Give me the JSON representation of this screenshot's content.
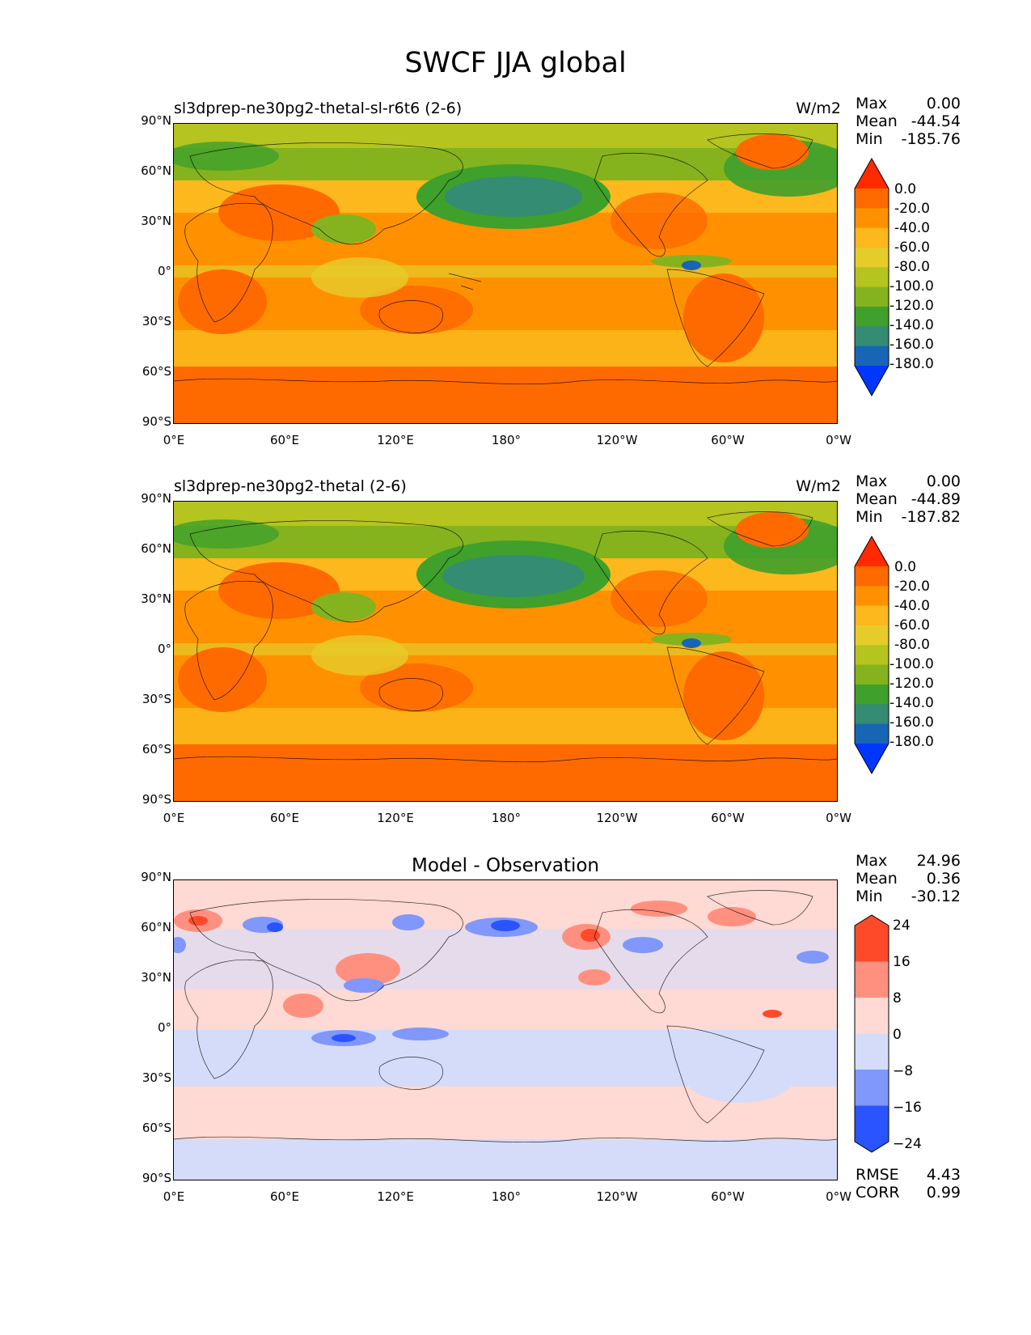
{
  "figure_title": "SWCF JJA global",
  "panels": [
    {
      "id": "test",
      "title": "sl3dprep-ne30pg2-thetal-sl-r6t6 (2-6)",
      "units": "W/m2",
      "stats": [
        {
          "label": "Max",
          "value": "0.00"
        },
        {
          "label": "Mean",
          "value": "-44.54"
        },
        {
          "label": "Min",
          "value": "-185.76"
        }
      ],
      "colorbar": {
        "ticks": [
          "0.0",
          "-20.0",
          "-40.0",
          "-60.0",
          "-80.0",
          "-100.0",
          "-120.0",
          "-140.0",
          "-160.0",
          "-180.0"
        ],
        "colors": [
          "#ff2a00",
          "#ff6a00",
          "#ff9100",
          "#fcb81c",
          "#e6cc2a",
          "#b5c41e",
          "#84b31e",
          "#3fa02b",
          "#348c72",
          "#1666b5",
          "#0037ff"
        ]
      }
    },
    {
      "id": "reference",
      "title": "sl3dprep-ne30pg2-thetal (2-6)",
      "units": "W/m2",
      "stats": [
        {
          "label": "Max",
          "value": "0.00"
        },
        {
          "label": "Mean",
          "value": "-44.89"
        },
        {
          "label": "Min",
          "value": "-187.82"
        }
      ],
      "colorbar": {
        "ticks": [
          "0.0",
          "-20.0",
          "-40.0",
          "-60.0",
          "-80.0",
          "-100.0",
          "-120.0",
          "-140.0",
          "-160.0",
          "-180.0"
        ],
        "colors": [
          "#ff2a00",
          "#ff6a00",
          "#ff9100",
          "#fcb81c",
          "#e6cc2a",
          "#b5c41e",
          "#84b31e",
          "#3fa02b",
          "#348c72",
          "#1666b5",
          "#0037ff"
        ]
      }
    },
    {
      "id": "difference",
      "title": "Model - Observation",
      "units": "",
      "stats": [
        {
          "label": "Max",
          "value": "24.96"
        },
        {
          "label": "Mean",
          "value": "0.36"
        },
        {
          "label": "Min",
          "value": "-30.12"
        }
      ],
      "extra_stats": [
        {
          "label": "RMSE",
          "value": "4.43"
        },
        {
          "label": "CORR",
          "value": "0.99"
        }
      ],
      "colorbar": {
        "ticks": [
          "24",
          "16",
          "8",
          "0",
          "−8",
          "−16",
          "−24"
        ],
        "colors": [
          "#ff4a2a",
          "#ff9080",
          "#ffd9d4",
          "#d5dcf9",
          "#8097fb",
          "#2a54ff"
        ]
      }
    }
  ],
  "axes": {
    "lat_ticks": [
      "90°N",
      "60°N",
      "30°N",
      "0°",
      "30°S",
      "60°S",
      "90°S"
    ],
    "lon_ticks": [
      "0°E",
      "60°E",
      "120°E",
      "180°",
      "120°W",
      "60°W",
      "0°W"
    ]
  }
}
